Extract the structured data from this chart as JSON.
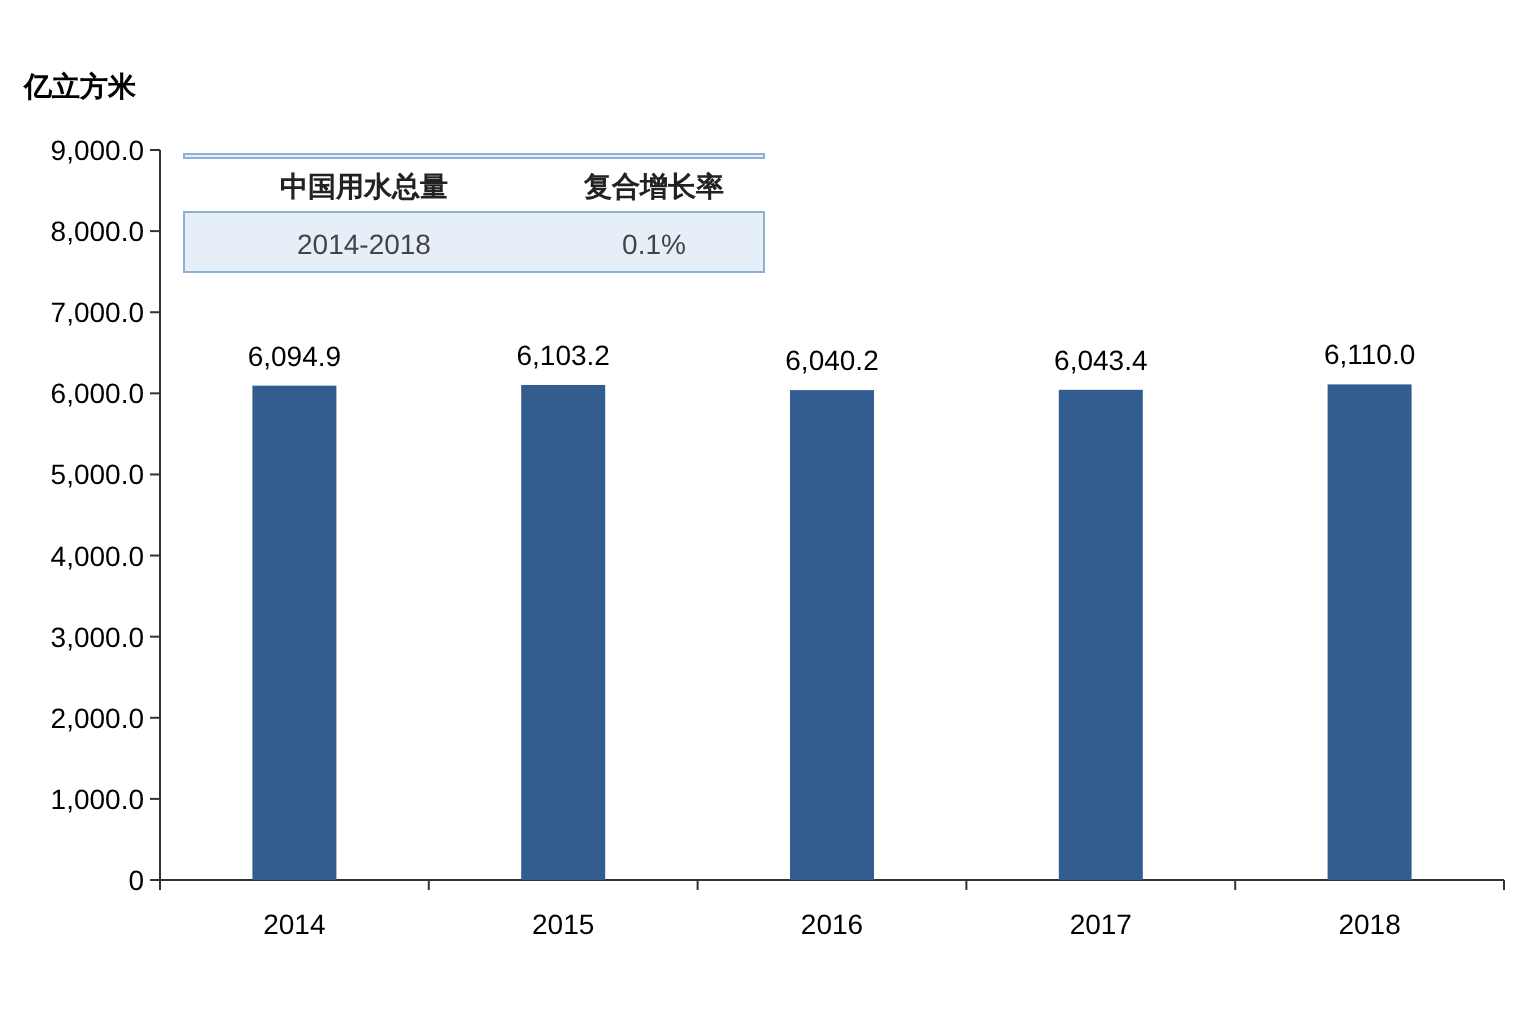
{
  "chart_data": {
    "type": "bar",
    "ylabel": "亿立方米",
    "categories": [
      "2014",
      "2015",
      "2016",
      "2017",
      "2018"
    ],
    "values": [
      6094.9,
      6103.2,
      6040.2,
      6043.4,
      6110.0
    ],
    "value_labels": [
      "6,094.9",
      "6,103.2",
      "6,040.2",
      "6,043.4",
      "6,110.0"
    ],
    "color": "#335d8f",
    "ylim": [
      0,
      9000
    ],
    "yticks": [
      0,
      {
        "value": 1000,
        "label": "1,000.0"
      },
      {
        "value": 2000,
        "label": "2,000.0"
      },
      {
        "value": 3000,
        "label": "3,000.0"
      },
      {
        "value": 4000,
        "label": "4,000.0"
      },
      {
        "value": 5000,
        "label": "5,000.0"
      },
      {
        "value": 6000,
        "label": "6,000.0"
      },
      {
        "value": 7000,
        "label": "7,000.0"
      },
      {
        "value": 8000,
        "label": "8,000.0"
      },
      {
        "value": 9000,
        "label": "9,000.0"
      }
    ],
    "grid": false,
    "annotations": [
      "中国用水总量",
      "复合增长率",
      "2014-2018",
      "0.1%"
    ]
  }
}
